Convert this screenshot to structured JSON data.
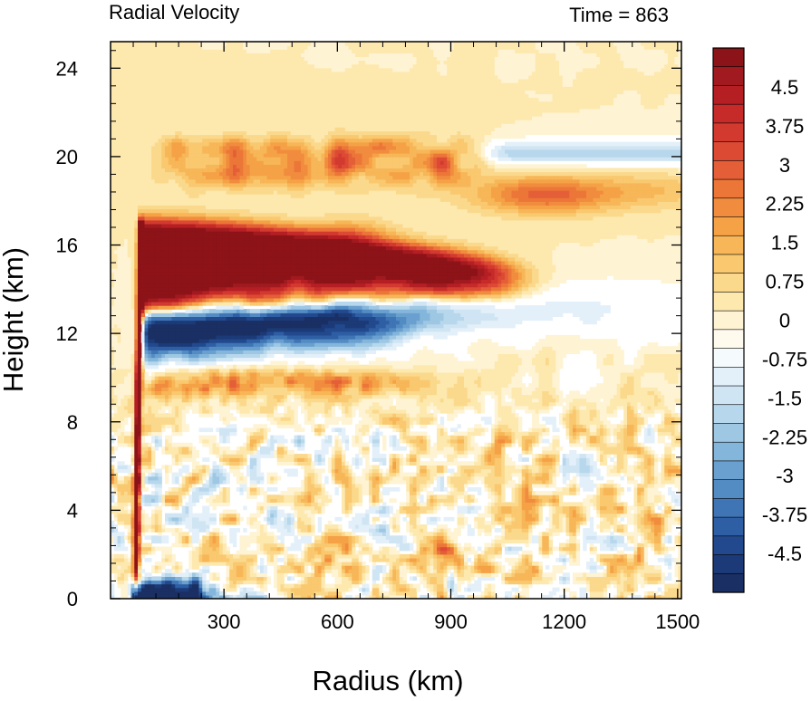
{
  "chart_data": {
    "type": "heatmap",
    "title_left": "Radial Velocity",
    "title_right": "Time = 863",
    "xlabel": "Radius (km)",
    "ylabel": "Height (km)",
    "xlim": [
      0,
      1510
    ],
    "ylim": [
      0,
      25.2
    ],
    "xticks": [
      300,
      600,
      900,
      1200,
      1500
    ],
    "yticks": [
      0,
      4,
      8,
      12,
      16,
      20,
      24
    ],
    "colorbar": {
      "labels": [
        "4.5",
        "3.75",
        "3",
        "2.25",
        "1.5",
        "0.75",
        "0",
        "-0.75",
        "-1.5",
        "-2.25",
        "-3",
        "-3.75",
        "-4.5"
      ],
      "label_values": [
        4.5,
        3.75,
        3,
        2.25,
        1.5,
        0.75,
        0,
        -0.75,
        -1.5,
        -2.25,
        -3,
        -3.75,
        -4.5
      ],
      "levels": [
        5.25,
        4.875,
        4.5,
        4.125,
        3.75,
        3.375,
        3,
        2.625,
        2.25,
        1.875,
        1.5,
        1.125,
        0.75,
        0.375,
        0,
        -0.375,
        -0.75,
        -1.125,
        -1.5,
        -1.875,
        -2.25,
        -2.625,
        -3,
        -3.375,
        -3.75,
        -4.125,
        -4.5,
        -4.875,
        -5.25
      ],
      "colors": [
        "#8c1318",
        "#a11a1f",
        "#b51f24",
        "#c62a29",
        "#d33a2f",
        "#dd4a34",
        "#e45f37",
        "#ec7638",
        "#f18c3e",
        "#f5a247",
        "#f7b657",
        "#f9c86f",
        "#fbd98c",
        "#fde8ae",
        "#fef3d3",
        "#fffaee",
        "#f5fafd",
        "#e3f0f9",
        "#cfe5f3",
        "#b7d7ec",
        "#9dc7e3",
        "#84b5da",
        "#6aa0cf",
        "#538bc3",
        "#3f74b5",
        "#2e5ea3",
        "#22498d",
        "#1b3a77",
        "#1a2f63"
      ]
    },
    "features": [
      {
        "name": "upper-level outflow",
        "sign": "positive",
        "r": [
          75,
          1050
        ],
        "z": [
          14,
          17.2
        ],
        "peak": 5.25
      },
      {
        "name": "mid-upper inflow",
        "sign": "negative",
        "r": [
          80,
          850
        ],
        "z": [
          10.8,
          13.5
        ],
        "peak": -5.25
      },
      {
        "name": "near-surface inflow",
        "sign": "negative",
        "r": [
          60,
          300
        ],
        "z": [
          0,
          1.2
        ],
        "peak": -5.25
      },
      {
        "name": "eyewall outflow column",
        "sign": "positive",
        "r": [
          55,
          85
        ],
        "z": [
          0.5,
          17
        ],
        "peak": 5.25
      },
      {
        "name": "upper outflow layer",
        "sign": "positive",
        "r": [
          150,
          1250
        ],
        "z": [
          17.5,
          21
        ],
        "peak": 3.5
      },
      {
        "name": "tropopause inflow",
        "sign": "negative",
        "r": [
          1000,
          1500
        ],
        "z": [
          19.8,
          21
        ],
        "peak": -2.0
      },
      {
        "name": "mid-level outflow",
        "sign": "positive",
        "r": [
          80,
          750
        ],
        "z": [
          9,
          10.5
        ],
        "peak": 2.5
      }
    ]
  }
}
